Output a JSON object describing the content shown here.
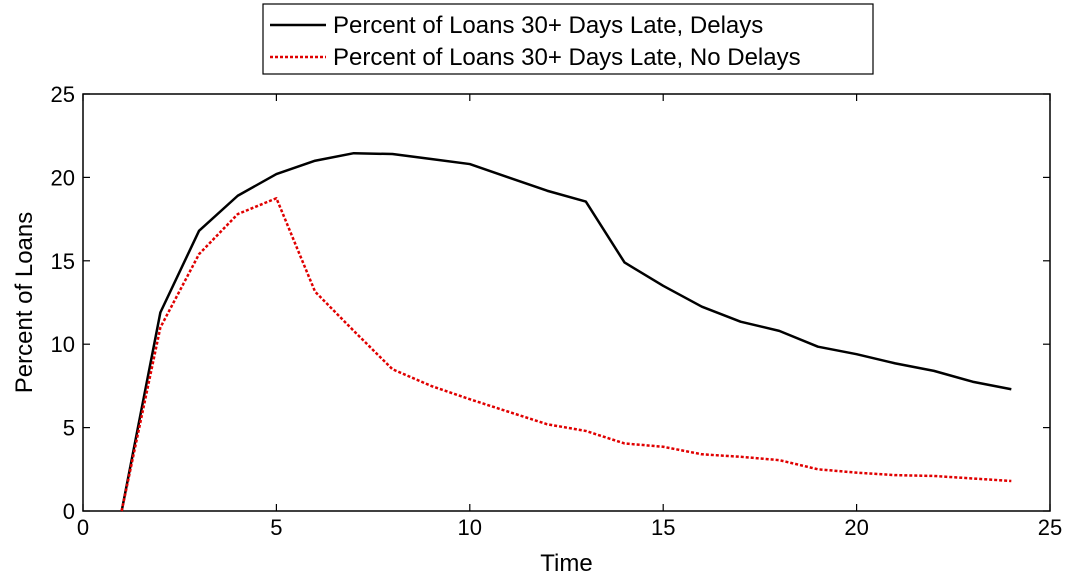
{
  "chart_data": {
    "type": "line",
    "title": "",
    "xlabel": "Time",
    "ylabel": "Percent of Loans",
    "xlim": [
      0,
      25
    ],
    "ylim": [
      0,
      25
    ],
    "xticks": [
      0,
      5,
      10,
      15,
      20,
      25
    ],
    "yticks": [
      0,
      5,
      10,
      15,
      20,
      25
    ],
    "grid": false,
    "legend_position": "top-outside",
    "x": [
      1,
      2,
      3,
      4,
      5,
      6,
      7,
      8,
      9,
      10,
      11,
      12,
      13,
      14,
      15,
      16,
      17,
      18,
      19,
      20,
      21,
      22,
      23,
      24
    ],
    "series": [
      {
        "name": "Percent of Loans 30+ Days Late, Delays",
        "color": "#000000",
        "dash": "solid",
        "values": [
          0,
          11.9,
          16.8,
          18.9,
          20.2,
          21.0,
          21.45,
          21.4,
          21.1,
          20.8,
          20.0,
          19.2,
          18.55,
          14.9,
          13.5,
          12.25,
          11.35,
          10.8,
          9.85,
          9.4,
          8.85,
          8.4,
          7.75,
          7.3
        ]
      },
      {
        "name": "Percent of Loans 30+ Days Late, No Delays",
        "color": "#e00000",
        "dash": "dashed",
        "values": [
          0,
          11.0,
          15.4,
          17.8,
          18.75,
          13.15,
          10.8,
          8.5,
          7.5,
          6.7,
          5.95,
          5.2,
          4.8,
          4.05,
          3.85,
          3.4,
          3.25,
          3.05,
          2.5,
          2.3,
          2.15,
          2.1,
          1.95,
          1.8
        ]
      }
    ]
  }
}
